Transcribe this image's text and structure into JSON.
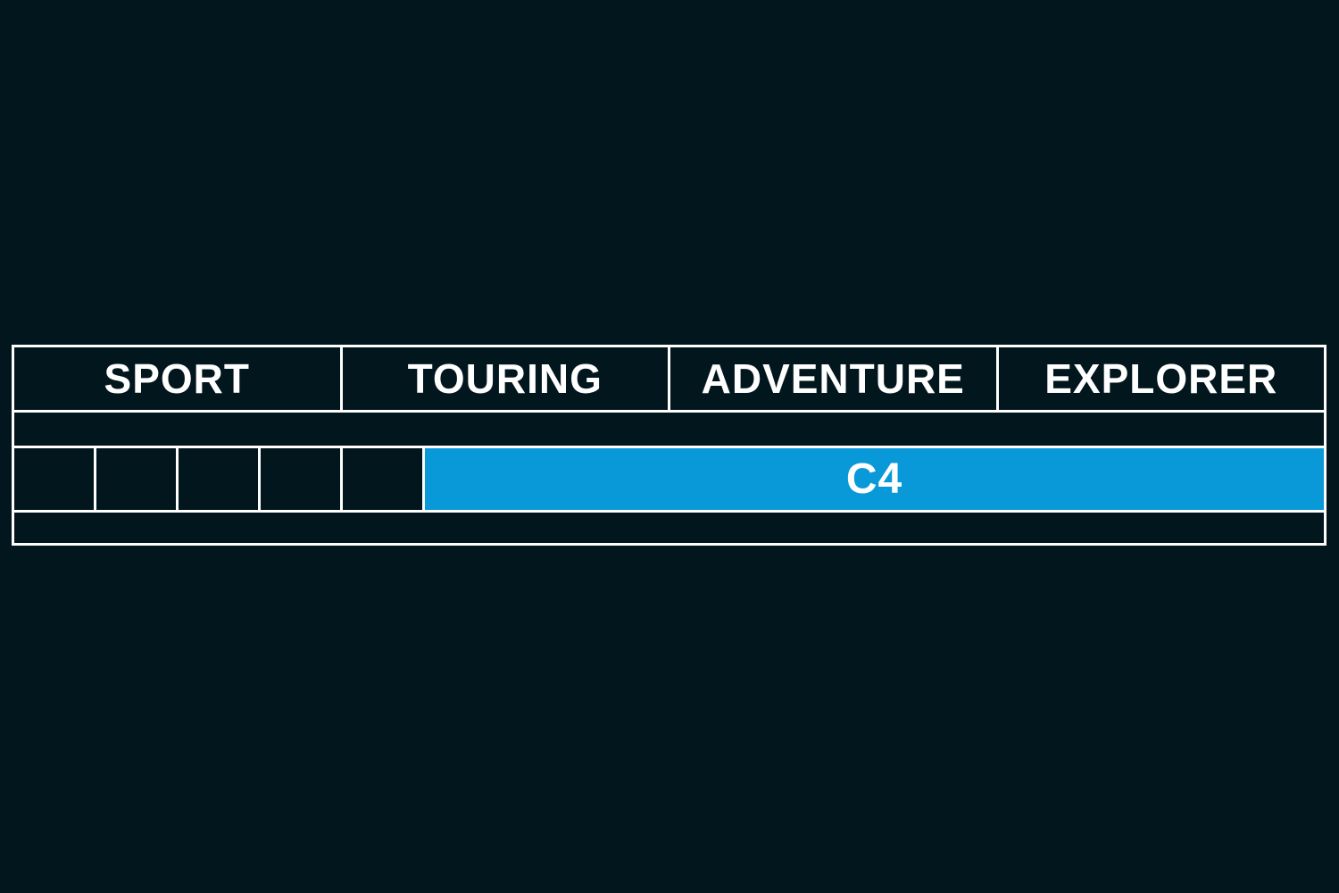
{
  "chart_data": {
    "type": "table",
    "title": "",
    "categories": [
      "SPORT",
      "TOURING",
      "ADVENTURE",
      "EXPLORER"
    ],
    "subdivisions_per_category": 4,
    "total_subdivisions": 16,
    "empty_leading_subdivisions": 5,
    "series": [
      {
        "name": "C4",
        "span_start_subdivision": 5,
        "span_end_subdivision": 16,
        "span_start_fraction": 0.3125,
        "span_end_fraction": 1.0,
        "covers_categories": [
          "TOURING",
          "ADVENTURE",
          "EXPLORER"
        ]
      }
    ],
    "legend_position": "none",
    "grid": "white-table-borders"
  },
  "colors": {
    "background": "#02171d",
    "border_line": "#ffffff",
    "accent_bar_blue": "#0999d8",
    "text": "#ffffff"
  },
  "bar": {
    "label": "C4"
  }
}
